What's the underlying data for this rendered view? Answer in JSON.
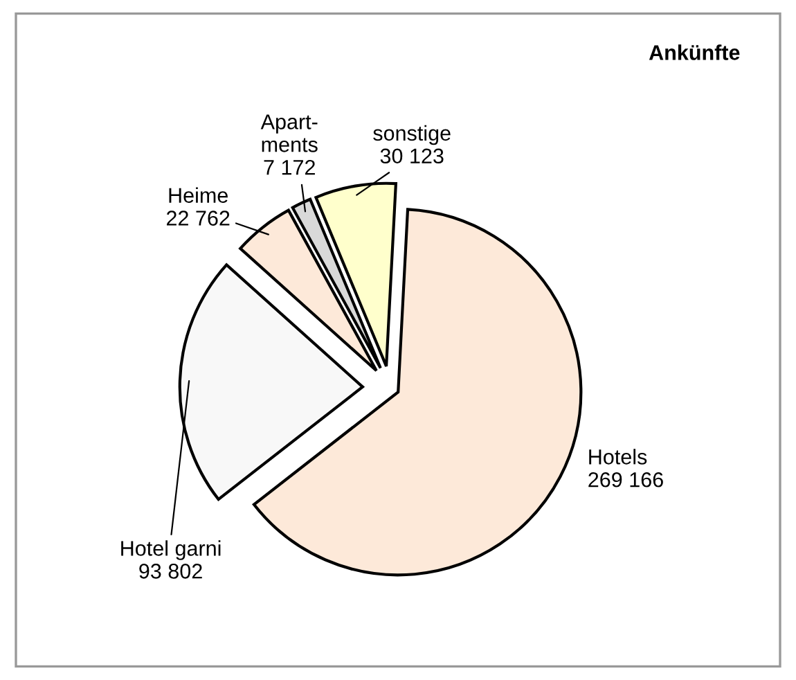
{
  "chart_data": {
    "type": "pie",
    "title": "Ankünfte",
    "categories": [
      "Hotels",
      "Hotel garni",
      "Heime",
      "Apart-\nments",
      "sonstige"
    ],
    "values": [
      269166,
      93802,
      22762,
      7172,
      30123
    ],
    "value_labels": [
      "269 166",
      "93 802",
      "22 762",
      "7 172",
      "30 123"
    ],
    "colors": [
      "#fde9d9",
      "#f8f8f8",
      "#fde9d9",
      "#d9d9d9",
      "#ffffcc"
    ],
    "legend": false
  }
}
